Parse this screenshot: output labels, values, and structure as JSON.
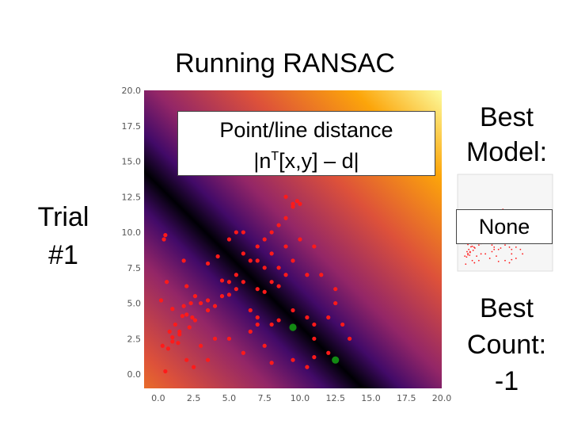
{
  "title": "Running RANSAC",
  "distance_box": {
    "line1": "Point/line distance",
    "formula_prefix": "|n",
    "formula_sup": "T",
    "formula_suffix": "[x,y] – d|"
  },
  "trial": {
    "line1": "Trial",
    "line2": "#1"
  },
  "best_model": {
    "line1": "Best",
    "line2": "Model:",
    "value": "None"
  },
  "best_count": {
    "line1": "Best",
    "line2": "Count:",
    "value": "-1"
  },
  "colors": {
    "points": "#ff1a1a",
    "sample_points": "#138a13",
    "heatmap": [
      "#000004",
      "#420a68",
      "#932667",
      "#dd513a",
      "#fca50a",
      "#fcffa4"
    ]
  },
  "chart_data": {
    "type": "scatter",
    "background": "distance heatmap from candidate line",
    "xlim": [
      -1,
      20
    ],
    "ylim": [
      -1,
      20
    ],
    "xticks": [
      "0.0",
      "2.5",
      "5.0",
      "7.5",
      "10.0",
      "12.5",
      "15.0",
      "17.5",
      "20.0"
    ],
    "yticks": [
      "0.0",
      "2.5",
      "5.0",
      "7.5",
      "10.0",
      "12.5",
      "15.0",
      "17.5",
      "20.0"
    ],
    "candidate_line": {
      "x1": -1,
      "y1": 14.3,
      "x2": 20,
      "y2": -6.5
    },
    "points": [
      [
        0.4,
        9.5
      ],
      [
        0.5,
        9.8
      ],
      [
        1.8,
        8.0
      ],
      [
        3.5,
        7.8
      ],
      [
        0.6,
        6.5
      ],
      [
        2.0,
        6.2
      ],
      [
        1.2,
        3.5
      ],
      [
        1.5,
        3.0
      ],
      [
        0.3,
        2.0
      ],
      [
        0.7,
        1.8
      ],
      [
        1.0,
        2.3
      ],
      [
        1.5,
        2.8
      ],
      [
        0.5,
        0.2
      ],
      [
        2.0,
        1.0
      ],
      [
        0.2,
        5.2
      ],
      [
        1.0,
        4.6
      ],
      [
        2.0,
        4.2
      ],
      [
        1.8,
        4.8
      ],
      [
        2.4,
        4.0
      ],
      [
        2.2,
        3.3
      ],
      [
        2.6,
        3.8
      ],
      [
        1.4,
        2.2
      ],
      [
        1.0,
        2.6
      ],
      [
        0.8,
        3.0
      ],
      [
        1.7,
        4.1
      ],
      [
        2.3,
        5.0
      ],
      [
        2.6,
        5.5
      ],
      [
        3.0,
        5.0
      ],
      [
        3.5,
        5.2
      ],
      [
        4.0,
        4.8
      ],
      [
        4.5,
        5.5
      ],
      [
        3.5,
        4.5
      ],
      [
        4.5,
        6.6
      ],
      [
        5.0,
        5.6
      ],
      [
        5.5,
        6.0
      ],
      [
        5.0,
        6.5
      ],
      [
        5.5,
        7.0
      ],
      [
        6.0,
        6.5
      ],
      [
        6.0,
        8.5
      ],
      [
        6.5,
        8.0
      ],
      [
        7.0,
        8.0
      ],
      [
        7.5,
        7.5
      ],
      [
        8.0,
        8.5
      ],
      [
        7.0,
        6.0
      ],
      [
        7.5,
        5.8
      ],
      [
        8.0,
        6.5
      ],
      [
        8.5,
        6.2
      ],
      [
        9.0,
        7.0
      ],
      [
        8.5,
        7.5
      ],
      [
        7.0,
        9.0
      ],
      [
        7.5,
        9.5
      ],
      [
        8.0,
        10.0
      ],
      [
        8.5,
        10.5
      ],
      [
        9.0,
        11.0
      ],
      [
        9.5,
        12.0
      ],
      [
        10.0,
        12.0
      ],
      [
        9.5,
        11.8
      ],
      [
        9.8,
        12.2
      ],
      [
        9.0,
        12.5
      ],
      [
        10.0,
        9.5
      ],
      [
        6.0,
        10.0
      ],
      [
        5.0,
        9.5
      ],
      [
        5.5,
        10.0
      ],
      [
        4.2,
        8.3
      ],
      [
        7.0,
        4.0
      ],
      [
        8.0,
        3.5
      ],
      [
        8.5,
        3.8
      ],
      [
        9.5,
        4.5
      ],
      [
        10.5,
        4.0
      ],
      [
        11.0,
        3.5
      ],
      [
        11.0,
        2.5
      ],
      [
        12.0,
        1.5
      ],
      [
        11.0,
        1.2
      ],
      [
        10.5,
        0.5
      ],
      [
        9.5,
        1.0
      ],
      [
        7.5,
        2.0
      ],
      [
        8.0,
        0.8
      ],
      [
        6.5,
        3.0
      ],
      [
        6.0,
        1.5
      ],
      [
        5.0,
        2.5
      ],
      [
        4.0,
        2.5
      ],
      [
        3.0,
        2.0
      ],
      [
        3.5,
        1.0
      ],
      [
        2.5,
        0.5
      ],
      [
        12.0,
        4.0
      ],
      [
        13.0,
        3.5
      ],
      [
        13.5,
        2.5
      ],
      [
        12.5,
        5.0
      ],
      [
        11.5,
        7.0
      ],
      [
        11.0,
        9.0
      ],
      [
        9.0,
        9.0
      ],
      [
        9.5,
        8.0
      ],
      [
        10.5,
        7.0
      ],
      [
        12.5,
        6.0
      ],
      [
        7.0,
        3.5
      ],
      [
        6.5,
        4.5
      ]
    ],
    "sample_points": [
      [
        9.5,
        3.3
      ],
      [
        12.5,
        1.0
      ]
    ]
  }
}
